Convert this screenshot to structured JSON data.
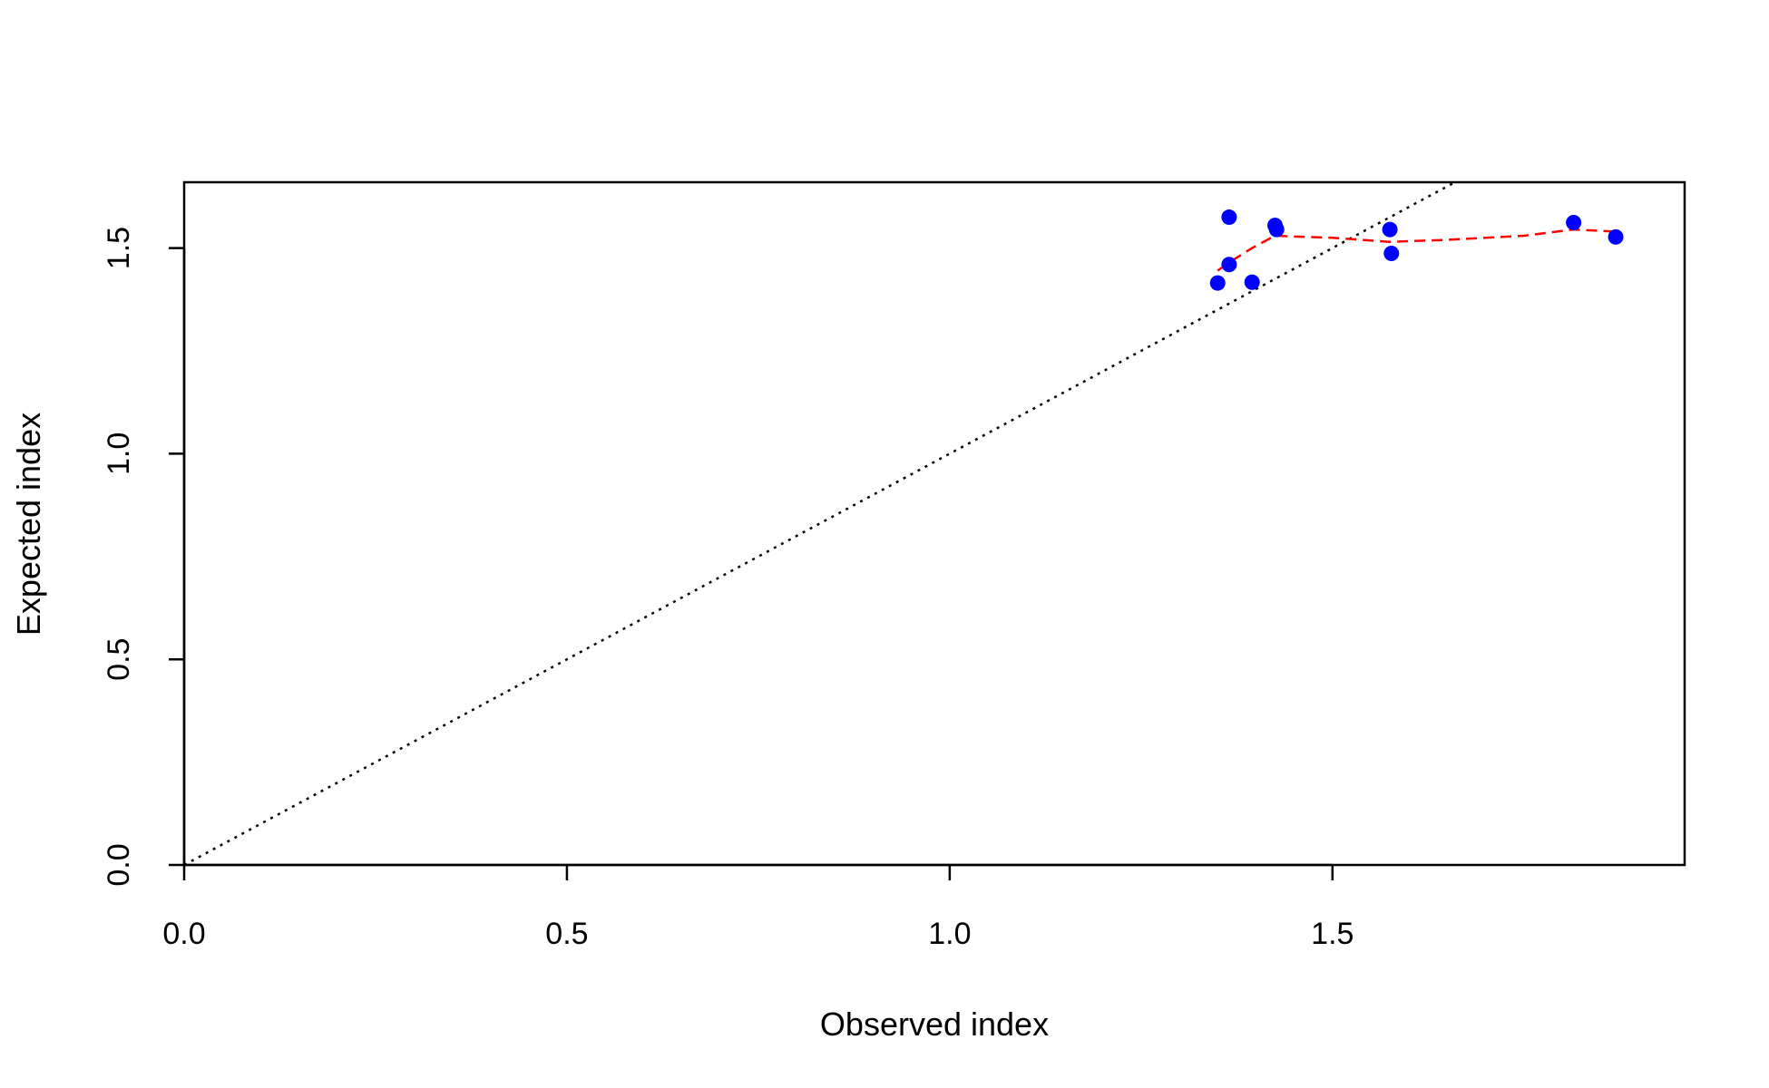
{
  "chart_data": {
    "type": "scatter",
    "title": "",
    "xlabel": "Observed index",
    "ylabel": "Expected index",
    "xlim": [
      0,
      1.96
    ],
    "ylim": [
      0,
      1.66
    ],
    "x_ticks": [
      "0.0",
      "0.5",
      "1.0",
      "1.5"
    ],
    "y_ticks": [
      "0.0",
      "0.5",
      "1.0",
      "1.5"
    ],
    "x_tick_values": [
      0,
      0.5,
      1.0,
      1.5
    ],
    "y_tick_values": [
      0,
      0.5,
      1.0,
      1.5
    ],
    "grid": false,
    "points": {
      "color": "#0000ff",
      "x": [
        1.35,
        1.365,
        1.365,
        1.395,
        1.425,
        1.427,
        1.575,
        1.577,
        1.815,
        1.87
      ],
      "y": [
        1.415,
        1.575,
        1.46,
        1.417,
        1.555,
        1.545,
        1.545,
        1.487,
        1.562,
        1.527
      ]
    },
    "smooth_line": {
      "color": "#ff0000",
      "style": "dashed",
      "x": [
        1.35,
        1.365,
        1.395,
        1.425,
        1.45,
        1.5,
        1.575,
        1.65,
        1.75,
        1.815,
        1.87
      ],
      "y": [
        1.445,
        1.465,
        1.5,
        1.53,
        1.528,
        1.525,
        1.515,
        1.52,
        1.53,
        1.545,
        1.54
      ]
    },
    "reference_line": {
      "color": "#000000",
      "style": "dotted",
      "x": [
        0,
        1.66
      ],
      "y": [
        0,
        1.66
      ]
    }
  }
}
